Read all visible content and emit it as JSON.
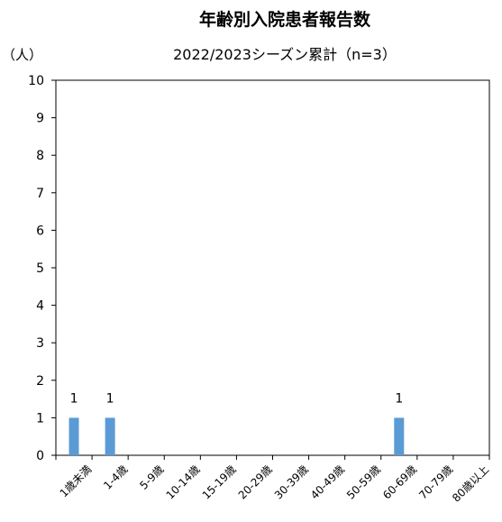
{
  "chart_data": {
    "type": "bar",
    "title": "年齢別入院患者報告数",
    "subtitle": "2022/2023シーズン累計（n=3）",
    "ylabel": "（人）",
    "xlabel": "",
    "categories": [
      "1歳未満",
      "1-4歳",
      "5-9歳",
      "10-14歳",
      "15-19歳",
      "20-29歳",
      "30-39歳",
      "40-49歳",
      "50-59歳",
      "60-69歳",
      "70-79歳",
      "80歳以上"
    ],
    "series": [
      {
        "values": [
          1,
          1,
          0,
          0,
          0,
          0,
          0,
          0,
          0,
          1,
          0,
          0
        ]
      }
    ],
    "ylim": [
      0,
      10
    ],
    "yticks": [
      "0",
      "1",
      "2",
      "3",
      "4",
      "5",
      "6",
      "7",
      "8",
      "9",
      "10"
    ],
    "data_labels": [
      "1",
      "1",
      "",
      "",
      "",
      "",
      "",
      "",
      "",
      "1",
      "",
      ""
    ],
    "grid": false,
    "legend": "none",
    "bar_color": "#5b9bd5"
  }
}
